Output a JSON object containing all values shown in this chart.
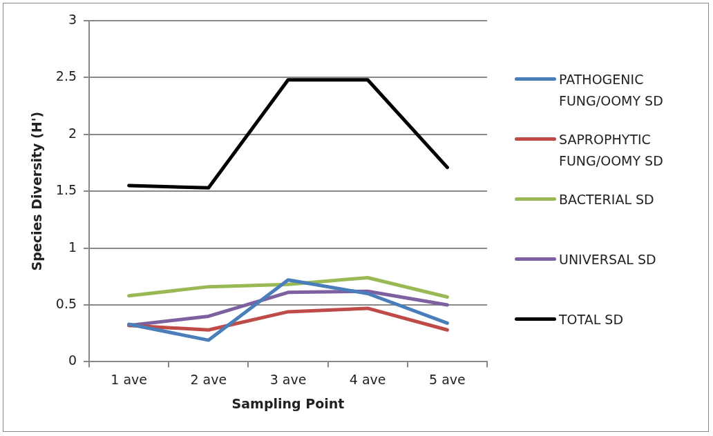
{
  "chart_data": {
    "type": "line",
    "xlabel": "Sampling Point",
    "ylabel": "Species Diversity (H')",
    "categories": [
      "1 ave",
      "2 ave",
      "3 ave",
      "4 ave",
      "5 ave"
    ],
    "series": [
      {
        "name": "PATHOGENIC FUNG/OOMY SD",
        "color": "#4a7ebb",
        "values": [
          0.33,
          0.19,
          0.72,
          0.6,
          0.34
        ]
      },
      {
        "name": "SAPROPHYTIC FUNG/OOMY SD",
        "color": "#be4b48",
        "values": [
          0.32,
          0.28,
          0.44,
          0.47,
          0.28
        ]
      },
      {
        "name": "BACTERIAL SD",
        "color": "#98b954",
        "values": [
          0.58,
          0.66,
          0.68,
          0.74,
          0.57
        ]
      },
      {
        "name": "UNIVERSAL SD",
        "color": "#7d60a0",
        "values": [
          0.32,
          0.4,
          0.61,
          0.62,
          0.5
        ]
      },
      {
        "name": "TOTAL SD",
        "color": "#000000",
        "values": [
          1.55,
          1.53,
          2.48,
          2.48,
          1.71
        ]
      }
    ],
    "ylim": [
      0,
      3
    ],
    "yticks": [
      0,
      0.5,
      1,
      1.5,
      2,
      2.5,
      3
    ],
    "grid": "y",
    "legend": "right",
    "marker": "none",
    "line_style": "solid"
  }
}
